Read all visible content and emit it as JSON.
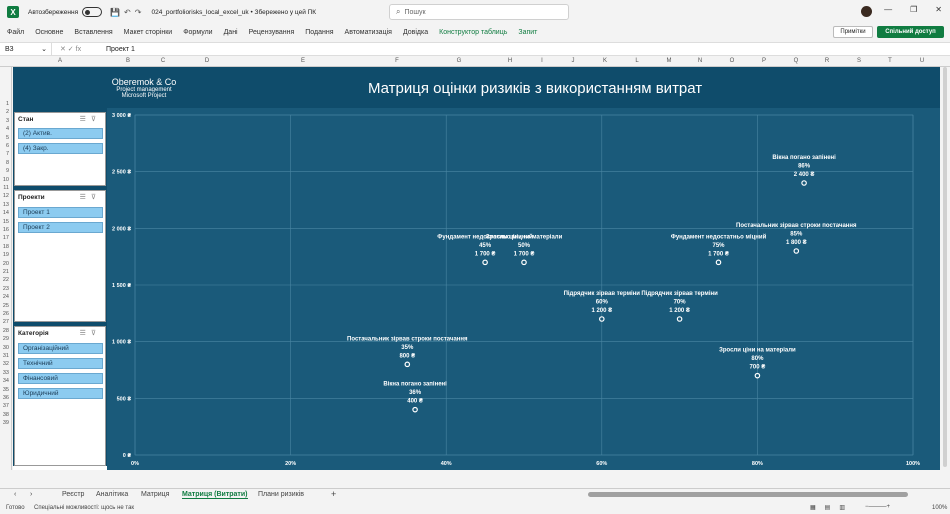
{
  "titlebar": {
    "autosave_label": "Автозбереження",
    "file_name": "024_portfoliorisks_local_excel_uk • Збережено у цей ПК",
    "search_placeholder": "Пошук"
  },
  "ribbon": {
    "tabs": [
      "Файл",
      "Основне",
      "Вставлення",
      "Макет сторінки",
      "Формули",
      "Дані",
      "Рецензування",
      "Подання",
      "Автоматизація",
      "Довідка",
      "Конструктор таблиць",
      "Запит"
    ],
    "notes_label": "Примітки",
    "share_label": "Спільний доступ"
  },
  "formula": {
    "cell_ref": "B3",
    "value": "Проект 1"
  },
  "columns": [
    "A",
    "B",
    "C",
    "D",
    "E",
    "F",
    "G",
    "H",
    "I",
    "J",
    "K",
    "L",
    "M",
    "N",
    "O",
    "P",
    "Q",
    "R",
    "S",
    "T",
    "U"
  ],
  "rows": [
    "1",
    "2",
    "3",
    "4",
    "5",
    "6",
    "7",
    "8",
    "9",
    "10",
    "11",
    "12",
    "13",
    "14",
    "15",
    "16",
    "17",
    "18",
    "19",
    "20",
    "21",
    "22",
    "23",
    "24",
    "25",
    "26",
    "27",
    "28",
    "29",
    "30",
    "31",
    "32",
    "33",
    "34",
    "35",
    "36",
    "37",
    "38",
    "39"
  ],
  "dashboard": {
    "company": "Oberemok & Co",
    "subtitle1": "Project management",
    "subtitle2": "Microsoft Project",
    "title": "Матриця оцінки ризиків з використанням витрат"
  },
  "slicers": {
    "status": {
      "title": "Стан",
      "items": [
        "(2) Актив.",
        "(4) Закр."
      ]
    },
    "projects": {
      "title": "Проекти",
      "items": [
        "Проект 1",
        "Проект 2"
      ]
    },
    "category": {
      "title": "Категорія",
      "items": [
        "Організаційний",
        "Технічний",
        "Фінансовий",
        "Юридичний"
      ]
    }
  },
  "chart_data": {
    "type": "scatter",
    "xlim": [
      0,
      1
    ],
    "ylim": [
      0,
      3000
    ],
    "x_ticks": [
      "0%",
      "20%",
      "40%",
      "60%",
      "80%",
      "100%"
    ],
    "y_ticks": [
      "0 ₴",
      "500 ₴",
      "1 000 ₴",
      "1 500 ₴",
      "2 000 ₴",
      "2 500 ₴",
      "3 000 ₴"
    ],
    "points": [
      {
        "name": "Вікна погано запінені",
        "prob_label": "86%",
        "cost_label": "2 400 ₴",
        "x": 0.86,
        "y": 2400
      },
      {
        "name": "Постачальник зірвав строки постачання",
        "prob_label": "85%",
        "cost_label": "1 800 ₴",
        "x": 0.85,
        "y": 1800
      },
      {
        "name": "Фундамент недостатньо міцний",
        "prob_label": "45%",
        "cost_label": "1 700 ₴",
        "x": 0.45,
        "y": 1700
      },
      {
        "name": "Зросли ціни на матеріали",
        "prob_label": "50%",
        "cost_label": "1 700 ₴",
        "x": 0.5,
        "y": 1700
      },
      {
        "name": "Фундамент недостатньо міцний",
        "prob_label": "75%",
        "cost_label": "1 700 ₴",
        "x": 0.75,
        "y": 1700
      },
      {
        "name": "Підрядчик зірвав терміни",
        "prob_label": "60%",
        "cost_label": "1 200 ₴",
        "x": 0.6,
        "y": 1200
      },
      {
        "name": "Підрядчик зірвав терміни",
        "prob_label": "70%",
        "cost_label": "1 200 ₴",
        "x": 0.7,
        "y": 1200
      },
      {
        "name": "Постачальник зірвав строки постачання",
        "prob_label": "35%",
        "cost_label": "800 ₴",
        "x": 0.35,
        "y": 800
      },
      {
        "name": "Зросли ціни на матеріали",
        "prob_label": "80%",
        "cost_label": "700 ₴",
        "x": 0.8,
        "y": 700
      },
      {
        "name": "Вікна погано запінені",
        "prob_label": "36%",
        "cost_label": "400 ₴",
        "x": 0.36,
        "y": 400
      }
    ]
  },
  "sheet_tabs": [
    "Реєстр",
    "Аналітика",
    "Матриця",
    "Матриця (Витрати)",
    "Плани ризиків"
  ],
  "status": {
    "ready": "Готово",
    "accessibility": "Спеціальні можливості: щось не так",
    "zoom": "100%"
  }
}
